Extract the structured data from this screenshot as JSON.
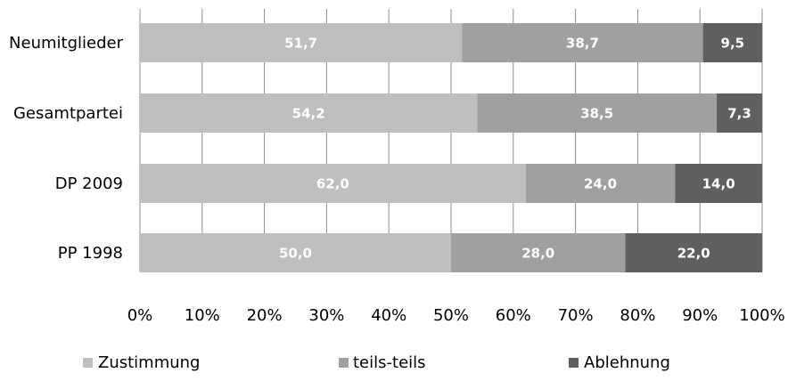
{
  "chart_data": {
    "type": "bar",
    "orientation": "horizontal",
    "stacked": true,
    "percent_stacked": true,
    "categories": [
      "Neumitglieder",
      "Gesamtpartei",
      "DP 2009",
      "PP 1998"
    ],
    "series": [
      {
        "name": "Zustimmung",
        "values": [
          51.7,
          54.2,
          62.0,
          50.0
        ],
        "labels": [
          "51,7",
          "54,2",
          "62,0",
          "50,0"
        ],
        "color": "#bfbfbf"
      },
      {
        "name": "teils-teils",
        "values": [
          38.7,
          38.5,
          24.0,
          28.0
        ],
        "labels": [
          "38,7",
          "38,5",
          "24,0",
          "28,0"
        ],
        "color": "#a0a0a0"
      },
      {
        "name": "Ablehnung",
        "values": [
          9.5,
          7.3,
          14.0,
          22.0
        ],
        "labels": [
          "9,5",
          "7,3",
          "14,0",
          "22,0"
        ],
        "color": "#5f5f5f"
      }
    ],
    "xlim": [
      0,
      100
    ],
    "xticks": [
      "0%",
      "10%",
      "20%",
      "30%",
      "40%",
      "50%",
      "60%",
      "70%",
      "80%",
      "90%",
      "100%"
    ],
    "grid": true,
    "legend_position": "bottom",
    "title": "",
    "xlabel": "",
    "ylabel": ""
  }
}
